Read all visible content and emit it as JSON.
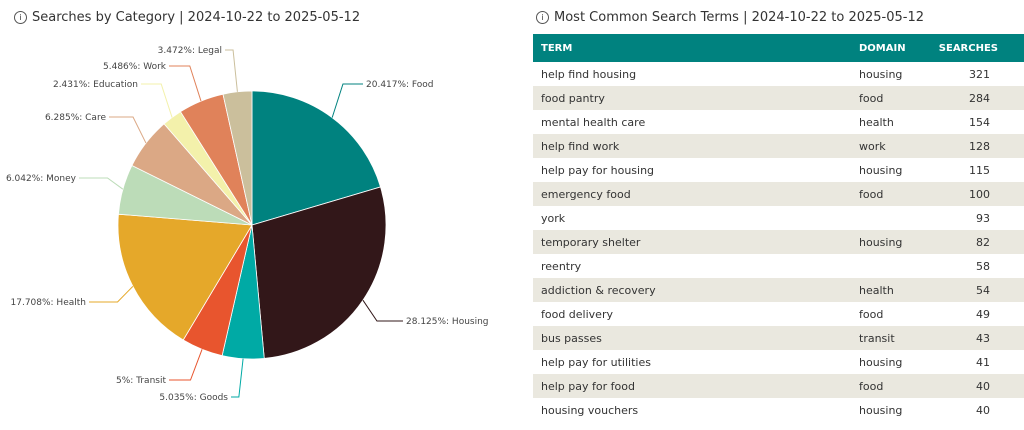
{
  "pie_panel": {
    "info_glyph": "i",
    "title": "Searches by Category | 2024-10-22 to 2025-05-12"
  },
  "table_panel": {
    "info_glyph": "i",
    "title": "Most Common Search Terms | 2024-10-22 to 2025-05-12",
    "columns": [
      "TERM",
      "DOMAIN",
      "SEARCHES"
    ],
    "rows": [
      [
        "help find housing",
        "housing",
        "321"
      ],
      [
        "food pantry",
        "food",
        "284"
      ],
      [
        "mental health care",
        "health",
        "154"
      ],
      [
        "help find work",
        "work",
        "128"
      ],
      [
        "help pay for housing",
        "housing",
        "115"
      ],
      [
        "emergency food",
        "food",
        "100"
      ],
      [
        "york",
        "",
        "93"
      ],
      [
        "temporary shelter",
        "housing",
        "82"
      ],
      [
        "reentry",
        "",
        "58"
      ],
      [
        "addiction & recovery",
        "health",
        "54"
      ],
      [
        "food delivery",
        "food",
        "49"
      ],
      [
        "bus passes",
        "transit",
        "43"
      ],
      [
        "help pay for utilities",
        "housing",
        "41"
      ],
      [
        "help pay for food",
        "food",
        "40"
      ],
      [
        "housing vouchers",
        "housing",
        "40"
      ]
    ]
  },
  "chart_data": {
    "type": "pie",
    "title": "Searches by Category | 2024-10-22 to 2025-05-12",
    "slices": [
      {
        "name": "Food",
        "value": 20.417,
        "label": "20.417%: Food",
        "color": "#00827f"
      },
      {
        "name": "Housing",
        "value": 28.125,
        "label": "28.125%: Housing",
        "color": "#321719"
      },
      {
        "name": "Goods",
        "value": 5.035,
        "label": "5.035%: Goods",
        "color": "#00aaa5"
      },
      {
        "name": "Transit",
        "value": 5,
        "label": "5%: Transit",
        "color": "#e8552e"
      },
      {
        "name": "Health",
        "value": 17.708,
        "label": "17.708%: Health",
        "color": "#e5a82a"
      },
      {
        "name": "Money",
        "value": 6.042,
        "label": "6.042%: Money",
        "color": "#bcdcb8"
      },
      {
        "name": "Care",
        "value": 6.285,
        "label": "6.285%: Care",
        "color": "#dba885"
      },
      {
        "name": "Education",
        "value": 2.431,
        "label": "2.431%: Education",
        "color": "#f3f1ab"
      },
      {
        "name": "Work",
        "value": 5.486,
        "label": "5.486%: Work",
        "color": "#e0825a"
      },
      {
        "name": "Legal",
        "value": 3.472,
        "label": "3.472%: Legal",
        "color": "#cbbf9c"
      }
    ],
    "legend": "none"
  }
}
